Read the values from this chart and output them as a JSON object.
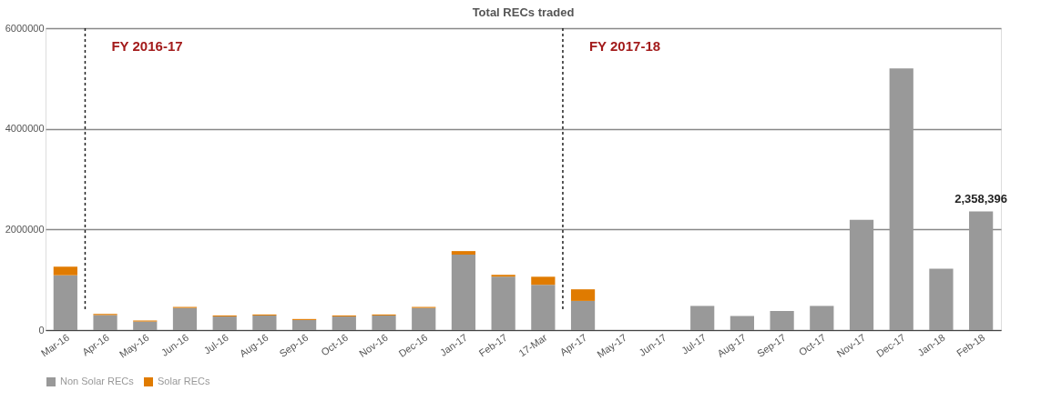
{
  "chart_data": {
    "type": "bar",
    "title": "Total RECs traded",
    "stacked": true,
    "categories": [
      "Mar-16",
      "Apr-16",
      "May-16",
      "Jun-16",
      "Jul-16",
      "Aug-16",
      "Sep-16",
      "Oct-16",
      "Nov-16",
      "Dec-16",
      "Jan-17",
      "Feb-17",
      "17-Mar",
      "Apr-17",
      "May-17",
      "Jun-17",
      "Jul-17",
      "Aug-17",
      "Sep-17",
      "Oct-17",
      "Nov-17",
      "Dec-17",
      "Jan-18",
      "Feb-18"
    ],
    "series": [
      {
        "name": "Non Solar RECs",
        "color": "#999999",
        "values": [
          1090000,
          300000,
          170000,
          440000,
          270000,
          290000,
          200000,
          270000,
          290000,
          440000,
          1500000,
          1060000,
          900000,
          580000,
          0,
          0,
          480000,
          280000,
          380000,
          480000,
          2190000,
          5200000,
          1220000,
          2358396
        ],
        "value_labels": [
          null,
          null,
          null,
          null,
          null,
          null,
          null,
          null,
          null,
          null,
          null,
          null,
          null,
          null,
          null,
          null,
          null,
          null,
          null,
          null,
          null,
          null,
          null,
          "2,358,396"
        ]
      },
      {
        "name": "Solar RECs",
        "color": "#e07b00",
        "values": [
          170000,
          20000,
          20000,
          20000,
          20000,
          20000,
          20000,
          20000,
          20000,
          20000,
          70000,
          40000,
          160000,
          230000,
          0,
          0,
          0,
          0,
          0,
          0,
          0,
          0,
          0,
          0
        ]
      }
    ],
    "ylim": [
      0,
      6000000
    ],
    "yticks": [
      0,
      2000000,
      4000000,
      6000000
    ],
    "grid": "y",
    "legend": "bottom",
    "ref_lines": [
      {
        "axis": "x",
        "value": "Apr-16",
        "label": "FY 2016-17",
        "color": "#222222",
        "line_style": "dashed"
      },
      {
        "axis": "x",
        "value": "Apr-17",
        "label": "FY 2017-18",
        "color": "#222222",
        "line_style": "dashed"
      }
    ]
  }
}
